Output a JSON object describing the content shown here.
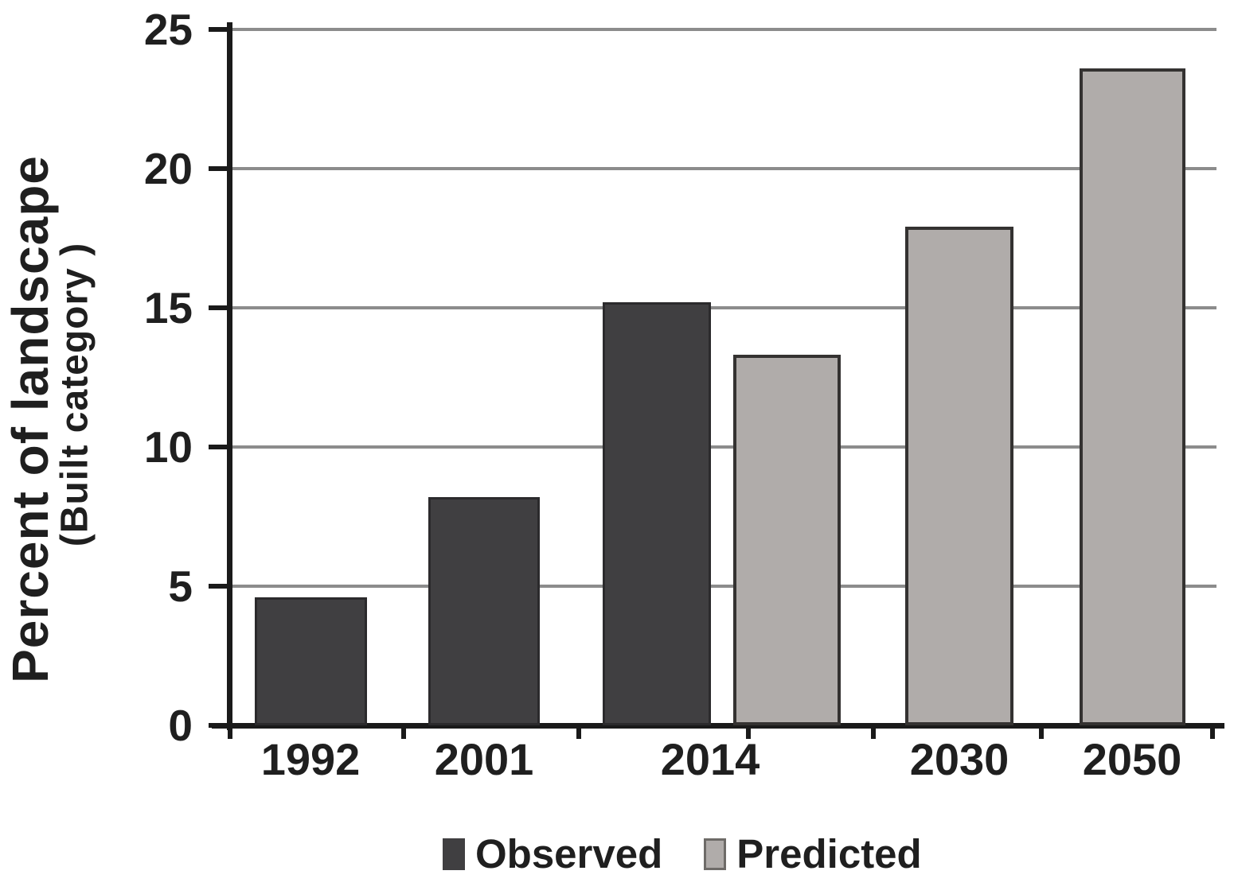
{
  "chart_data": {
    "type": "bar",
    "title": "",
    "ylabel": "Percent of landscape",
    "ylabel_sub": "(Built category )",
    "xlabel": "",
    "categories": [
      "1992",
      "2001",
      "2014",
      "2030",
      "2050"
    ],
    "series": [
      {
        "name": "Observed",
        "color": "#403f41",
        "values": [
          4.6,
          8.2,
          15.2,
          null,
          null
        ]
      },
      {
        "name": "Predicted",
        "color": "#b0acaa",
        "values": [
          null,
          null,
          13.3,
          17.9,
          23.6
        ]
      }
    ],
    "ylim": [
      0,
      25
    ],
    "yticks": [
      0,
      5,
      10,
      15,
      20,
      25
    ],
    "grid": "horizontal",
    "gridline_color": "#8c8c8c",
    "axis_color": "#1a1a1a",
    "text_color": "#1f1f1f",
    "legend_position": "bottom"
  }
}
